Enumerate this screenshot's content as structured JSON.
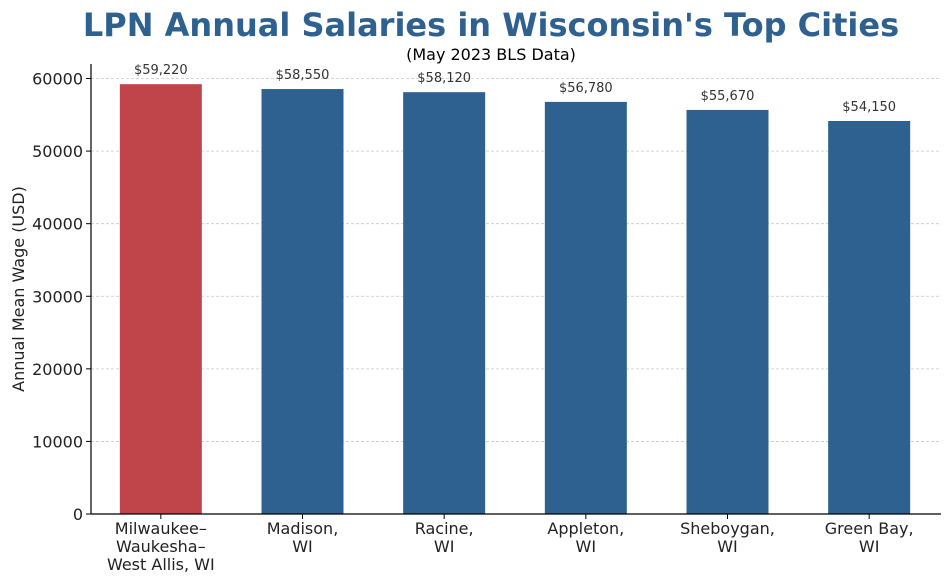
{
  "chart_data": {
    "type": "bar",
    "title": "LPN Annual Salaries in Wisconsin's Top Cities",
    "subtitle": "(May 2023 BLS Data)",
    "xlabel": "",
    "ylabel": "Annual Mean Wage (USD)",
    "ylim": [
      0,
      62000
    ],
    "yticks": [
      0,
      10000,
      20000,
      30000,
      40000,
      50000,
      60000
    ],
    "grid": true,
    "categories": [
      [
        "Milwaukee–",
        "Waukesha–",
        "West Allis, WI"
      ],
      [
        "Madison,",
        "WI"
      ],
      [
        "Racine,",
        "WI"
      ],
      [
        "Appleton,",
        "WI"
      ],
      [
        "Sheboygan,",
        "WI"
      ],
      [
        "Green Bay,",
        "WI"
      ]
    ],
    "values": [
      59220,
      58550,
      58120,
      56780,
      55670,
      54150
    ],
    "data_labels": [
      "$59,220",
      "$58,550",
      "$58,120",
      "$56,780",
      "$55,670",
      "$54,150"
    ],
    "colors": [
      "#c0454a",
      "#2e6090",
      "#2e6090",
      "#2e6090",
      "#2e6090",
      "#2e6090"
    ]
  }
}
